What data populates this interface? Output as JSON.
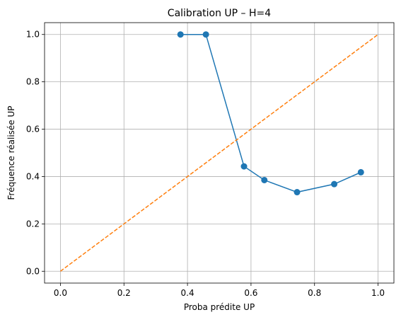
{
  "chart_data": {
    "type": "line",
    "title": "Calibration UP – H=4",
    "xlabel": "Proba prédite UP",
    "ylabel": "Fréquence réalisée UP",
    "xlim": [
      -0.05,
      1.05
    ],
    "ylim": [
      -0.05,
      1.05
    ],
    "grid": true,
    "x_ticks": [
      0.0,
      0.2,
      0.4,
      0.6,
      0.8,
      1.0
    ],
    "x_tick_labels": [
      "0.0",
      "0.2",
      "0.4",
      "0.6",
      "0.8",
      "1.0"
    ],
    "y_ticks": [
      0.0,
      0.2,
      0.4,
      0.6,
      0.8,
      1.0
    ],
    "y_tick_labels": [
      "0.0",
      "0.2",
      "0.4",
      "0.6",
      "0.8",
      "1.0"
    ],
    "series": [
      {
        "color": "#1f77b4",
        "style": "solid-with-markers",
        "x": [
          0.378,
          0.458,
          0.578,
          0.642,
          0.745,
          0.862,
          0.946
        ],
        "y": [
          1.0,
          1.0,
          0.443,
          0.385,
          0.334,
          0.368,
          0.418
        ]
      },
      {
        "color": "#ff7f0e",
        "style": "dashed",
        "x": [
          0.0,
          1.0
        ],
        "y": [
          0.0,
          1.0
        ]
      }
    ]
  }
}
